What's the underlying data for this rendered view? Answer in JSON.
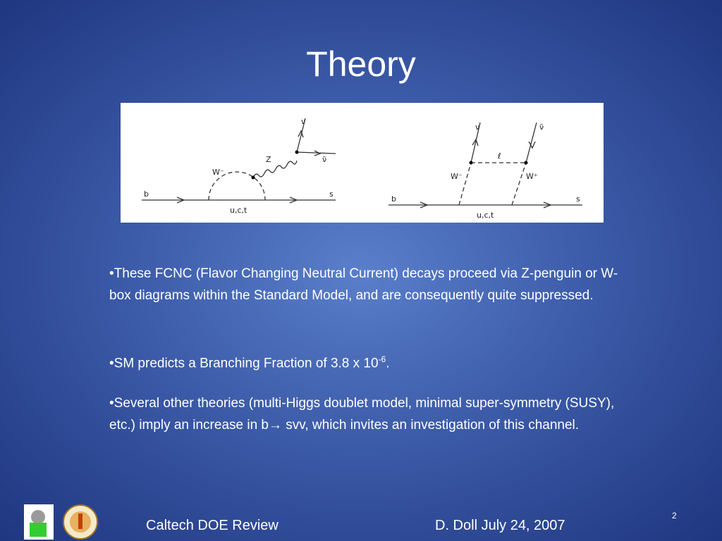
{
  "header": {
    "title": "Theory"
  },
  "diagram": {
    "penguin": {
      "b": "b",
      "s": "s",
      "quarks": "u,c,t",
      "w": "W⁻",
      "z": "Z",
      "nu": "ν",
      "nubar": "ν̄"
    },
    "box": {
      "b": "b",
      "s": "s",
      "quarks": "u,c,t",
      "w_minus": "W⁻",
      "w_plus": "W⁺",
      "lepton": "ℓ",
      "nu": "ν",
      "nubar": "ν̄"
    }
  },
  "bullets": [
    {
      "text": "•These FCNC (Flavor Changing Neutral Current) decays proceed via Z-penguin or W-box diagrams within the Standard Model, and are consequently quite suppressed."
    },
    {
      "text": "•SM predicts a Branching Fraction of 3.8 x 10",
      "sup": "-6",
      "end": "."
    },
    {
      "text": "•Several other theories (multi-Higgs doublet model, minimal super-symmetry (SUSY), etc.)  imply an increase in b",
      "arrow": "→",
      "end": " svv, which invites an investigation of this channel."
    }
  ],
  "footer": {
    "left": "Caltech DOE Review",
    "right": "D. Doll  July 24, 2007",
    "page": "2"
  }
}
